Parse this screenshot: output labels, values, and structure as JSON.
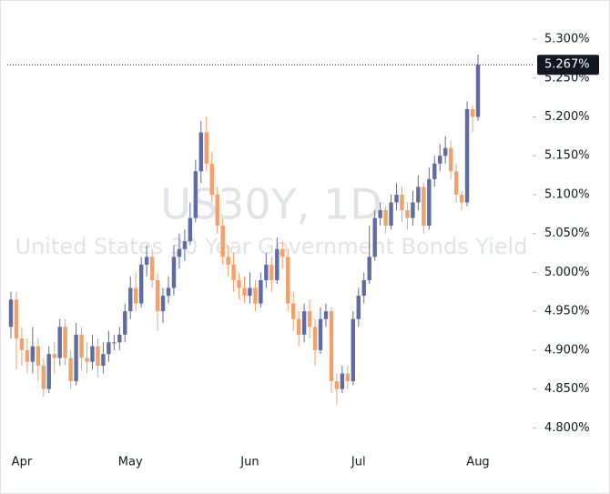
{
  "chart_data": {
    "type": "candlestick",
    "title": "US30Y, 1D",
    "subtitle": "United States 30 Year Government Bonds Yield",
    "categories": [
      null,
      null,
      "Apr",
      null,
      null,
      null,
      null,
      null,
      null,
      null,
      null,
      null,
      null,
      null,
      null,
      null,
      null,
      null,
      null,
      null,
      null,
      null,
      "May",
      null,
      null,
      null,
      null,
      null,
      null,
      null,
      null,
      null,
      null,
      null,
      null,
      null,
      null,
      null,
      null,
      null,
      null,
      null,
      null,
      null,
      "Jun",
      null,
      null,
      null,
      null,
      null,
      null,
      null,
      null,
      null,
      null,
      null,
      null,
      null,
      null,
      null,
      null,
      null,
      null,
      null,
      "Jul",
      null,
      null,
      null,
      null,
      null,
      null,
      null,
      null,
      null,
      null,
      null,
      null,
      null,
      null,
      null,
      null,
      null,
      null,
      null,
      null,
      null,
      "Aug"
    ],
    "opens": [
      4.93,
      4.965,
      4.915,
      4.9,
      4.885,
      4.905,
      4.88,
      4.85,
      4.895,
      4.89,
      4.93,
      4.89,
      4.86,
      4.92,
      4.89,
      4.885,
      4.905,
      4.88,
      4.895,
      4.91,
      4.91,
      4.92,
      4.95,
      4.98,
      4.96,
      5.01,
      5.02,
      4.99,
      4.95,
      4.97,
      4.98,
      5.02,
      5.03,
      5.04,
      5.07,
      5.13,
      5.18,
      5.14,
      5.1,
      5.06,
      5.02,
      5.01,
      4.99,
      4.98,
      4.97,
      4.98,
      4.96,
      4.99,
      5.01,
      4.99,
      5.03,
      5.02,
      4.96,
      4.94,
      4.92,
      4.95,
      4.93,
      4.9,
      4.94,
      4.95,
      4.86,
      4.85,
      4.87,
      4.86,
      4.94,
      4.97,
      4.99,
      5.02,
      5.07,
      5.08,
      5.06,
      5.09,
      5.1,
      5.08,
      5.07,
      5.09,
      5.11,
      5.06,
      5.12,
      5.14,
      5.15,
      5.16,
      5.13,
      5.1,
      5.09,
      5.21,
      5.2
    ],
    "highs": [
      4.975,
      4.975,
      4.93,
      4.915,
      4.93,
      4.915,
      4.89,
      4.905,
      4.91,
      4.94,
      4.94,
      4.9,
      4.935,
      4.93,
      4.91,
      4.92,
      4.915,
      4.91,
      4.925,
      4.92,
      4.93,
      4.96,
      4.995,
      5.0,
      5.02,
      5.035,
      5.03,
      5.0,
      4.98,
      4.995,
      5.035,
      5.05,
      5.055,
      5.09,
      5.145,
      5.195,
      5.2,
      5.155,
      5.11,
      5.07,
      5.035,
      5.025,
      5.0,
      4.995,
      5.0,
      4.99,
      5.0,
      5.025,
      5.02,
      5.045,
      5.04,
      5.03,
      4.975,
      4.95,
      4.96,
      4.965,
      4.94,
      4.955,
      4.96,
      4.955,
      4.87,
      4.88,
      4.88,
      4.95,
      4.98,
      5.0,
      5.06,
      5.08,
      5.09,
      5.085,
      5.1,
      5.115,
      5.11,
      5.09,
      5.105,
      5.125,
      5.115,
      5.135,
      5.15,
      5.165,
      5.175,
      5.17,
      5.14,
      5.105,
      5.22,
      5.215,
      5.28
    ],
    "lows": [
      4.915,
      4.875,
      4.88,
      4.87,
      4.87,
      4.86,
      4.84,
      4.845,
      4.87,
      4.88,
      4.88,
      4.85,
      4.855,
      4.875,
      4.87,
      4.875,
      4.865,
      4.87,
      4.885,
      4.9,
      4.9,
      4.91,
      4.94,
      4.95,
      4.955,
      4.995,
      4.98,
      4.925,
      4.935,
      4.96,
      4.97,
      5.005,
      5.015,
      5.035,
      5.065,
      5.115,
      5.13,
      5.09,
      5.05,
      5.01,
      4.995,
      4.975,
      4.965,
      4.96,
      4.96,
      4.95,
      4.955,
      4.98,
      4.975,
      4.985,
      5.005,
      4.95,
      4.925,
      4.905,
      4.91,
      4.915,
      4.88,
      4.895,
      4.93,
      4.845,
      4.83,
      4.845,
      4.85,
      4.855,
      4.93,
      4.96,
      4.985,
      5.015,
      5.06,
      5.05,
      5.055,
      5.08,
      5.065,
      5.055,
      5.06,
      5.08,
      5.05,
      5.055,
      5.11,
      5.13,
      5.14,
      5.12,
      5.09,
      5.08,
      5.085,
      5.18,
      5.195
    ],
    "closes": [
      4.965,
      4.915,
      4.9,
      4.885,
      4.905,
      4.88,
      4.85,
      4.895,
      4.89,
      4.93,
      4.89,
      4.86,
      4.92,
      4.89,
      4.885,
      4.905,
      4.88,
      4.895,
      4.91,
      4.91,
      4.92,
      4.95,
      4.98,
      4.96,
      5.01,
      5.02,
      4.99,
      4.95,
      4.97,
      4.98,
      5.02,
      5.03,
      5.04,
      5.07,
      5.13,
      5.18,
      5.14,
      5.1,
      5.06,
      5.02,
      5.01,
      4.99,
      4.98,
      4.97,
      4.98,
      4.96,
      4.99,
      5.01,
      4.99,
      5.03,
      5.02,
      4.96,
      4.94,
      4.92,
      4.95,
      4.93,
      4.9,
      4.94,
      4.95,
      4.86,
      4.85,
      4.87,
      4.86,
      4.94,
      4.97,
      4.99,
      5.02,
      5.07,
      5.08,
      5.06,
      5.09,
      5.1,
      5.08,
      5.07,
      5.09,
      5.11,
      5.06,
      5.12,
      5.14,
      5.15,
      5.16,
      5.13,
      5.1,
      5.09,
      5.21,
      5.2,
      5.267
    ],
    "up_color": "#5f6ba6",
    "down_color": "#f4a06a",
    "last_price": {
      "value": 5.267,
      "label": "5.267%"
    },
    "ylim": [
      4.777,
      5.341
    ],
    "yticks": [
      {
        "value": 4.8,
        "label": "4.800%"
      },
      {
        "value": 4.85,
        "label": "4.850%"
      },
      {
        "value": 4.9,
        "label": "4.900%"
      },
      {
        "value": 4.95,
        "label": "4.950%"
      },
      {
        "value": 5.0,
        "label": "5.000%"
      },
      {
        "value": 5.05,
        "label": "5.050%"
      },
      {
        "value": 5.1,
        "label": "5.100%"
      },
      {
        "value": 5.15,
        "label": "5.150%"
      },
      {
        "value": 5.2,
        "label": "5.200%"
      },
      {
        "value": 5.25,
        "label": "5.250%"
      },
      {
        "value": 5.3,
        "label": "5.300%"
      }
    ]
  }
}
